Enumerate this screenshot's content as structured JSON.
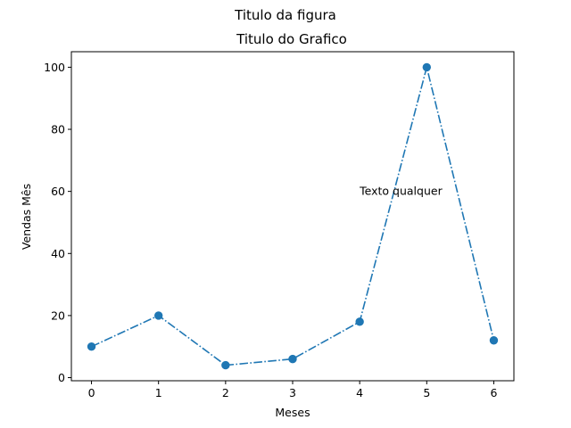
{
  "chart_data": {
    "type": "line",
    "suptitle": "Titulo da figura",
    "title": "Titulo do Grafico",
    "xlabel": "Meses",
    "ylabel": "Vendas Mês",
    "x": [
      0,
      1,
      2,
      3,
      4,
      5,
      6
    ],
    "series": [
      {
        "values": [
          10,
          20,
          4,
          6,
          18,
          100,
          12
        ],
        "color": "#1f77b4",
        "linestyle": "dash-dot",
        "marker": "circle"
      }
    ],
    "xlim": [
      -0.3,
      6.3
    ],
    "ylim": [
      -1,
      105
    ],
    "xticks": [
      0,
      1,
      2,
      3,
      4,
      5,
      6
    ],
    "yticks": [
      0,
      20,
      40,
      60,
      80,
      100
    ],
    "grid": false,
    "annotations": [
      {
        "text": "Texto qualquer",
        "x": 4,
        "y": 60
      }
    ]
  }
}
